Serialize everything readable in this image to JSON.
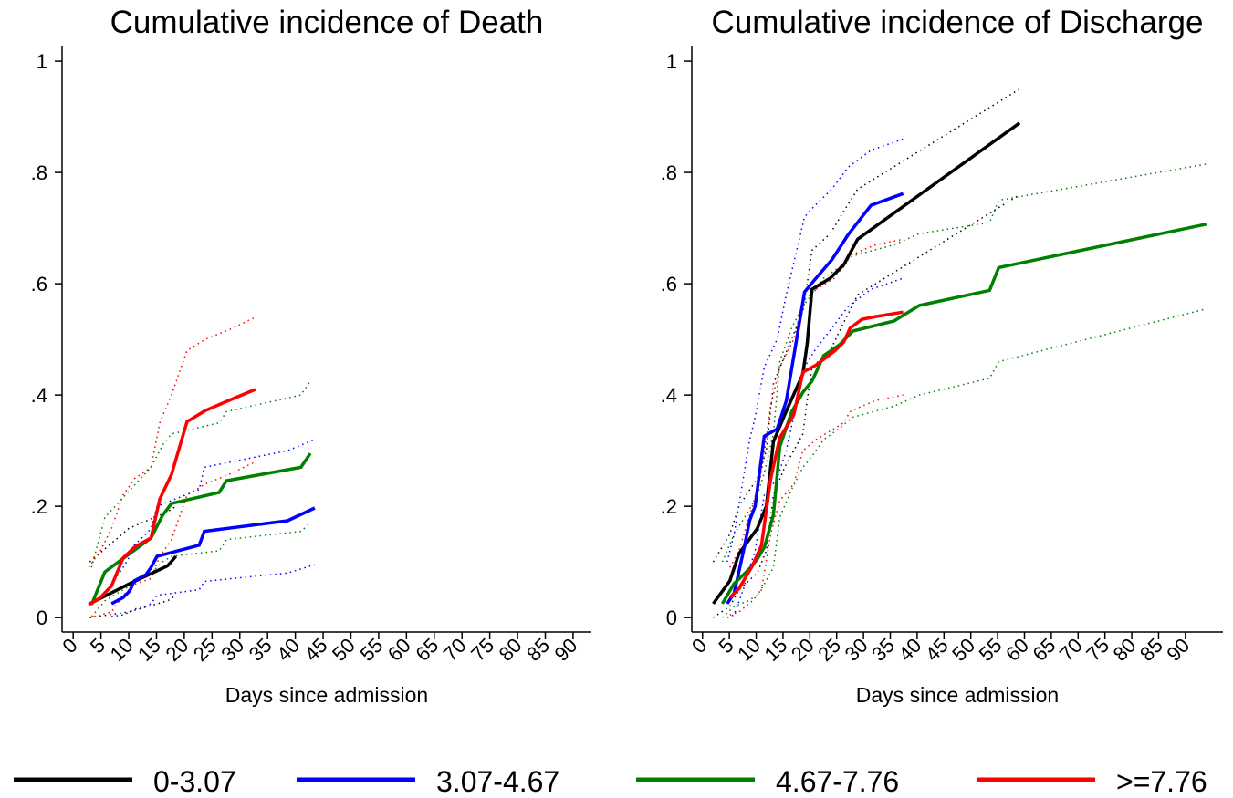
{
  "chart_data": [
    {
      "type": "line",
      "title": "Cumulative incidence of Death",
      "xlabel": "Days since admission",
      "xlim": [
        -2,
        93.3
      ],
      "ylim": [
        -0.026,
        1.028
      ],
      "xticks": [
        0,
        5,
        10,
        15,
        20,
        25,
        30,
        35,
        40,
        45,
        50,
        55,
        60,
        65,
        70,
        75,
        80,
        85,
        90
      ],
      "yticks": [
        0,
        {
          "value": 0.2,
          "label": ".2"
        },
        {
          "value": 0.4,
          "label": ".4"
        },
        {
          "value": 0.6,
          "label": ".6"
        },
        {
          "value": 0.8,
          "label": ".8"
        },
        1
      ],
      "series": [
        {
          "color": "#000000",
          "x": [
            3,
            10,
            17,
            18.5
          ],
          "values": [
            0.025,
            0.06,
            0.093,
            0.11
          ],
          "upper": [
            0.1,
            0.16,
            0.19,
            0.2
          ],
          "lower": [
            0,
            0.01,
            0.03,
            0.04
          ]
        },
        {
          "color": "#0000ff",
          "x": [
            6.9,
            9,
            10.2,
            11,
            13.1,
            14,
            15.1,
            22.7,
            23.6,
            38.6,
            43.5
          ],
          "values": [
            0.025,
            0.036,
            0.048,
            0.066,
            0.077,
            0.09,
            0.11,
            0.13,
            0.155,
            0.174,
            0.197
          ],
          "upper": [
            0.06,
            0.09,
            0.11,
            0.13,
            0.15,
            0.16,
            0.2,
            0.23,
            0.27,
            0.3,
            0.32
          ],
          "lower": [
            0.002,
            0.005,
            0.01,
            0.015,
            0.02,
            0.025,
            0.04,
            0.05,
            0.065,
            0.08,
            0.095
          ]
        },
        {
          "color": "#008000",
          "x": [
            3.3,
            5.7,
            14,
            16.1,
            17.7,
            26.3,
            27.6,
            41,
            42.7
          ],
          "values": [
            0.023,
            0.082,
            0.143,
            0.184,
            0.205,
            0.225,
            0.246,
            0.27,
            0.295
          ],
          "upper": [
            0.09,
            0.18,
            0.27,
            0.31,
            0.33,
            0.35,
            0.37,
            0.4,
            0.425
          ],
          "lower": [
            0.002,
            0.03,
            0.08,
            0.1,
            0.11,
            0.12,
            0.14,
            0.155,
            0.17
          ]
        },
        {
          "color": "#ff0000",
          "x": [
            2.8,
            4.9,
            6.9,
            9,
            11.1,
            14,
            15.6,
            17.7,
            20.5,
            23.8,
            28.7,
            32.8
          ],
          "values": [
            0.023,
            0.036,
            0.057,
            0.107,
            0.127,
            0.143,
            0.213,
            0.257,
            0.352,
            0.372,
            0.393,
            0.41
          ],
          "upper": [
            0.09,
            0.12,
            0.16,
            0.22,
            0.25,
            0.27,
            0.35,
            0.4,
            0.48,
            0.5,
            0.52,
            0.54
          ],
          "lower": [
            0,
            0.005,
            0.01,
            0.04,
            0.06,
            0.07,
            0.11,
            0.14,
            0.22,
            0.24,
            0.26,
            0.28
          ]
        }
      ]
    },
    {
      "type": "line",
      "title": "Cumulative incidence of Discharge",
      "xlabel": "Days since admission",
      "xlim": [
        -2,
        97
      ],
      "ylim": [
        -0.026,
        1.028
      ],
      "xticks": [
        0,
        5,
        10,
        15,
        20,
        25,
        30,
        35,
        40,
        45,
        50,
        55,
        60,
        65,
        70,
        75,
        80,
        85,
        90
      ],
      "yticks": [
        0,
        {
          "value": 0.2,
          "label": ".2"
        },
        {
          "value": 0.4,
          "label": ".4"
        },
        {
          "value": 0.6,
          "label": ".6"
        },
        {
          "value": 0.8,
          "label": ".8"
        },
        1
      ],
      "series": [
        {
          "color": "#000000",
          "x": [
            2,
            5.1,
            6.8,
            10.2,
            11.9,
            13.2,
            15.3,
            18.7,
            19.5,
            20.4,
            23.8,
            26.3,
            28.9,
            59.1
          ],
          "values": [
            0.025,
            0.066,
            0.115,
            0.16,
            0.2,
            0.316,
            0.364,
            0.438,
            0.492,
            0.59,
            0.61,
            0.634,
            0.68,
            0.889
          ],
          "upper": [
            0.1,
            0.15,
            0.2,
            0.25,
            0.3,
            0.42,
            0.47,
            0.55,
            0.6,
            0.66,
            0.69,
            0.73,
            0.77,
            0.95
          ],
          "lower": [
            0,
            0.02,
            0.05,
            0.08,
            0.12,
            0.22,
            0.27,
            0.33,
            0.39,
            0.45,
            0.48,
            0.53,
            0.58,
            0.76
          ]
        },
        {
          "color": "#0000ff",
          "x": [
            4.6,
            5.9,
            7.6,
            8.8,
            9.8,
            11.5,
            13.9,
            15.6,
            19,
            20.9,
            24.1,
            27.2,
            31.4,
            37.4
          ],
          "values": [
            0.025,
            0.044,
            0.118,
            0.175,
            0.2,
            0.326,
            0.339,
            0.389,
            0.585,
            0.607,
            0.643,
            0.689,
            0.741,
            0.762
          ],
          "upper": [
            0.1,
            0.15,
            0.25,
            0.32,
            0.36,
            0.45,
            0.5,
            0.58,
            0.72,
            0.74,
            0.77,
            0.81,
            0.84,
            0.86
          ],
          "lower": [
            0,
            0.005,
            0.05,
            0.09,
            0.12,
            0.22,
            0.25,
            0.3,
            0.45,
            0.48,
            0.52,
            0.56,
            0.59,
            0.61
          ]
        },
        {
          "color": "#008000",
          "x": [
            3.7,
            5.9,
            8.5,
            10.2,
            11.5,
            13.2,
            14.4,
            16.6,
            18.7,
            20.4,
            22.6,
            25.5,
            28,
            35.7,
            40.4,
            53.5,
            55.2,
            93.9
          ],
          "values": [
            0.025,
            0.061,
            0.085,
            0.105,
            0.126,
            0.184,
            0.307,
            0.369,
            0.405,
            0.425,
            0.471,
            0.49,
            0.515,
            0.533,
            0.561,
            0.588,
            0.629,
            0.707
          ],
          "upper": [
            0.1,
            0.15,
            0.19,
            0.22,
            0.26,
            0.33,
            0.46,
            0.52,
            0.56,
            0.58,
            0.61,
            0.63,
            0.65,
            0.67,
            0.69,
            0.71,
            0.75,
            0.815
          ],
          "lower": [
            0,
            0.02,
            0.03,
            0.04,
            0.06,
            0.09,
            0.18,
            0.23,
            0.27,
            0.29,
            0.32,
            0.34,
            0.36,
            0.38,
            0.4,
            0.43,
            0.46,
            0.555
          ]
        },
        {
          "color": "#ff0000",
          "x": [
            5.1,
            6.8,
            9.3,
            11,
            12.7,
            14.4,
            17,
            18.7,
            21.2,
            24.6,
            26.3,
            27.5,
            29.7,
            32.3,
            37.4
          ],
          "values": [
            0.036,
            0.052,
            0.093,
            0.13,
            0.249,
            0.323,
            0.364,
            0.441,
            0.454,
            0.479,
            0.495,
            0.52,
            0.536,
            0.541,
            0.549
          ],
          "upper": [
            0.09,
            0.12,
            0.2,
            0.26,
            0.38,
            0.45,
            0.5,
            0.57,
            0.59,
            0.61,
            0.63,
            0.65,
            0.66,
            0.67,
            0.68
          ],
          "lower": [
            0.005,
            0.01,
            0.03,
            0.05,
            0.15,
            0.21,
            0.24,
            0.3,
            0.32,
            0.34,
            0.35,
            0.37,
            0.38,
            0.39,
            0.4
          ]
        }
      ]
    }
  ],
  "legend": [
    {
      "name": "0-3.07",
      "color": "#000000"
    },
    {
      "name": "3.07-4.67",
      "color": "#0000ff"
    },
    {
      "name": "4.67-7.76",
      "color": "#008000"
    },
    {
      "name": ">=7.76",
      "color": "#ff0000"
    }
  ]
}
